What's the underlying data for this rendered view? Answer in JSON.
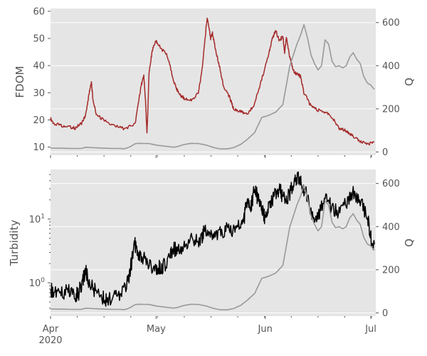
{
  "chart_data": [
    {
      "type": "line",
      "style": "ggplot",
      "ylabel": "FDOM",
      "y2label": "Q",
      "ylim": [
        7,
        61
      ],
      "yticks": [
        10,
        20,
        30,
        40,
        50,
        60
      ],
      "y2lim": [
        -15,
        665
      ],
      "y2ticks": [
        0,
        200,
        400,
        600
      ],
      "x_range_days": [
        0,
        92.4
      ],
      "series": [
        {
          "axis": "left",
          "color": "#a52a2a",
          "x": [
            0,
            1,
            3,
            5,
            7,
            9,
            10,
            11,
            11.6,
            12,
            13,
            15,
            18,
            21,
            24,
            25.8,
            26.5,
            27,
            27.4,
            27.7,
            28,
            29,
            30,
            31,
            33,
            34,
            35,
            36,
            37,
            38,
            40,
            42,
            43,
            44.5,
            45.5,
            46,
            47,
            48,
            49,
            51,
            52,
            54,
            56,
            58,
            60,
            62,
            63,
            64,
            65,
            66,
            66.5,
            67,
            68,
            69,
            70,
            71,
            72,
            74,
            76,
            78,
            80,
            82,
            84,
            85,
            86,
            88,
            90,
            92
          ],
          "y": [
            20.5,
            18.5,
            18,
            17.5,
            17,
            19,
            22,
            30,
            34,
            28,
            22,
            20,
            17.8,
            16.8,
            18.5,
            33,
            36,
            27,
            15,
            25,
            38,
            46,
            49,
            47,
            44,
            40,
            34,
            31,
            29,
            28,
            27,
            30,
            38,
            58,
            50,
            52,
            45,
            40,
            33,
            28,
            24,
            23,
            22,
            26,
            35,
            44,
            50,
            53,
            49,
            51,
            45,
            50,
            43,
            38,
            37,
            36,
            30,
            25,
            23.5,
            23,
            21,
            17,
            16,
            15,
            14,
            12,
            11,
            12
          ]
        },
        {
          "axis": "right",
          "color": "#999999",
          "x": [
            0,
            4,
            8,
            9,
            10,
            12,
            16,
            20,
            21,
            22,
            23,
            24,
            25,
            28,
            30,
            32,
            34,
            35,
            36,
            38,
            40,
            42,
            44,
            45,
            46,
            48,
            49,
            50,
            52,
            54,
            56,
            58,
            60,
            62,
            64,
            66,
            68,
            70,
            71,
            72,
            73,
            74,
            75,
            76,
            77,
            78,
            79,
            80,
            81,
            82,
            83,
            84,
            85,
            86,
            87,
            88,
            89,
            90,
            91,
            92
          ],
          "y": [
            18,
            17,
            16,
            17,
            22,
            20,
            17,
            16,
            15,
            20,
            28,
            38,
            40,
            39,
            32,
            28,
            24,
            22,
            25,
            35,
            40,
            39,
            33,
            28,
            22,
            15,
            14,
            14,
            20,
            35,
            60,
            90,
            160,
            170,
            185,
            220,
            400,
            500,
            540,
            590,
            530,
            450,
            410,
            380,
            400,
            520,
            500,
            420,
            395,
            400,
            390,
            400,
            440,
            460,
            430,
            410,
            350,
            320,
            310,
            290
          ]
        }
      ]
    },
    {
      "type": "line",
      "style": "ggplot",
      "ylabel": "Turbidity",
      "y2label": "Q",
      "y_scale": "log",
      "ylim": [
        0.3,
        60
      ],
      "y2lim": [
        -15,
        665
      ],
      "y2ticks": [
        0,
        200,
        400,
        600
      ],
      "x_range_days": [
        0,
        92.4
      ],
      "xtick_labels": [
        "Apr\n2020",
        "May",
        "Jun",
        "Jul"
      ],
      "xtick_days": [
        0,
        30,
        61,
        91
      ],
      "series": [
        {
          "axis": "left",
          "color": "#000000",
          "x": [
            0,
            1,
            3,
            5,
            7,
            8,
            9,
            10,
            11,
            13,
            15,
            16,
            18,
            20,
            22,
            23,
            24,
            25,
            26,
            28,
            30,
            31,
            32,
            34,
            35,
            36,
            38,
            40,
            42,
            43,
            44,
            46,
            48,
            50,
            52,
            54,
            55,
            56,
            57,
            58,
            59,
            60,
            61,
            62,
            63,
            64,
            65,
            66,
            67,
            68,
            69,
            70,
            71,
            72,
            74,
            76,
            78,
            80,
            82,
            84,
            86,
            88,
            90,
            91,
            92
          ],
          "y": [
            0.8,
            0.7,
            0.7,
            0.75,
            0.65,
            0.7,
            1.0,
            1.5,
            1.0,
            0.7,
            0.6,
            0.55,
            0.6,
            0.7,
            1.0,
            2.0,
            4.0,
            3.0,
            2.5,
            2.0,
            1.5,
            1.8,
            1.8,
            2.5,
            3.5,
            3.0,
            4.0,
            5.0,
            4.5,
            5.0,
            7.0,
            5.0,
            6.0,
            7.0,
            7.0,
            8.0,
            10.0,
            20.0,
            15.0,
            30.0,
            20.0,
            15.0,
            10.0,
            15.0,
            20.0,
            25.0,
            30.0,
            22.0,
            20.0,
            25.0,
            35.0,
            45.0,
            40.0,
            30.0,
            12.0,
            10.0,
            20.0,
            15.0,
            12.0,
            18.0,
            25.0,
            20.0,
            10.0,
            5.0,
            4.0
          ]
        },
        {
          "axis": "right",
          "color": "#999999",
          "x": [
            0,
            4,
            8,
            9,
            10,
            12,
            16,
            20,
            21,
            22,
            23,
            24,
            25,
            28,
            30,
            32,
            34,
            35,
            36,
            38,
            40,
            42,
            44,
            45,
            46,
            48,
            49,
            50,
            52,
            54,
            56,
            58,
            60,
            62,
            64,
            66,
            68,
            70,
            71,
            72,
            73,
            74,
            75,
            76,
            77,
            78,
            79,
            80,
            81,
            82,
            83,
            84,
            85,
            86,
            87,
            88,
            89,
            90,
            91,
            92
          ],
          "y": [
            18,
            17,
            16,
            17,
            22,
            20,
            17,
            16,
            15,
            20,
            28,
            38,
            40,
            39,
            32,
            28,
            24,
            22,
            25,
            35,
            40,
            39,
            33,
            28,
            22,
            15,
            14,
            14,
            20,
            35,
            60,
            90,
            160,
            170,
            185,
            220,
            400,
            500,
            540,
            590,
            530,
            450,
            410,
            380,
            400,
            520,
            500,
            420,
            395,
            400,
            390,
            400,
            440,
            460,
            430,
            410,
            350,
            320,
            310,
            290
          ]
        }
      ]
    }
  ]
}
